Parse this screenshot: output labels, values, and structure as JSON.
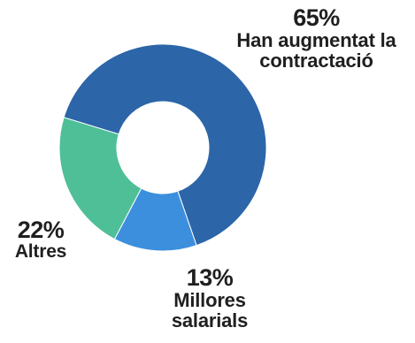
{
  "chart_data": {
    "type": "pie",
    "style": "donut",
    "slices": [
      {
        "value": 65,
        "pct_label": "65%",
        "label_lines": [
          "Han augmentat la",
          "contractació"
        ],
        "color": "#2c65a8"
      },
      {
        "value": 13,
        "pct_label": "13%",
        "label_lines": [
          "Millores",
          "salarials"
        ],
        "color": "#3c8fdc"
      },
      {
        "value": 22,
        "pct_label": "22%",
        "label_lines": [
          "Altres"
        ],
        "color": "#4fbf97"
      }
    ]
  }
}
